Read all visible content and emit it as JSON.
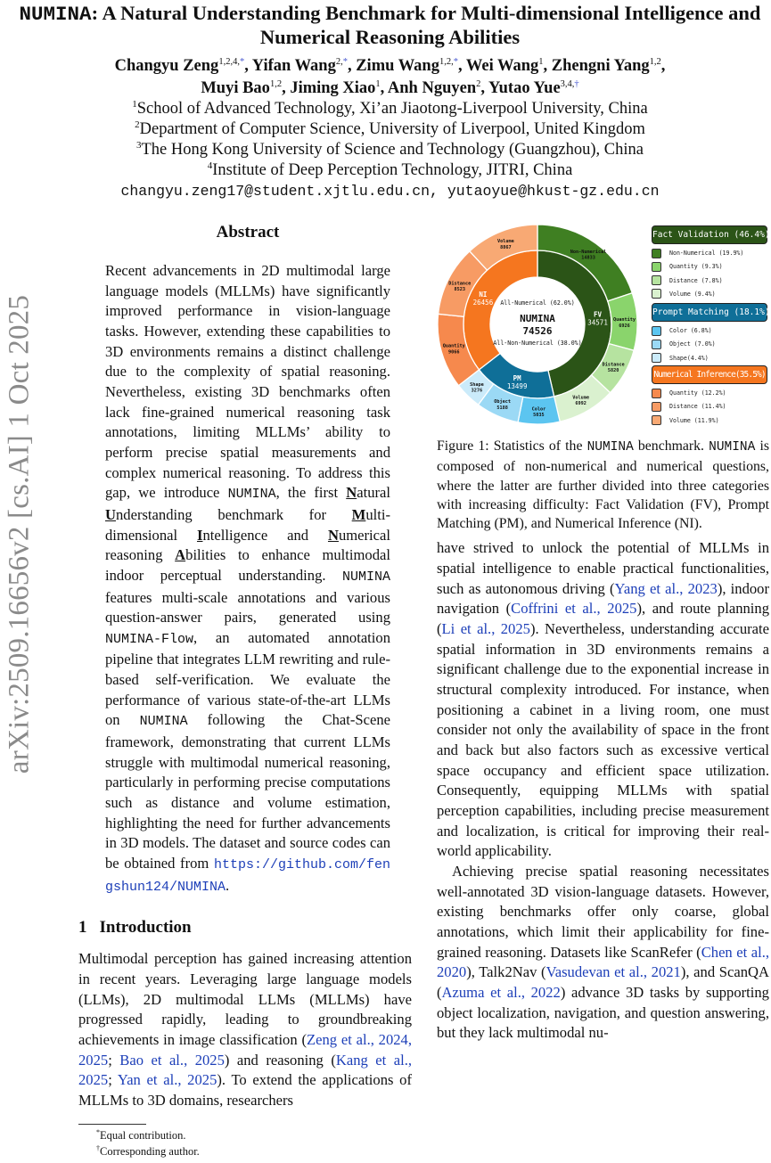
{
  "sidebar_stamp": "arXiv:2509.16656v2  [cs.AI]  1 Oct 2025",
  "title": {
    "name": "NUMINA",
    "rest": ": A Natural Understanding Benchmark for Multi-dimensional Intelligence and Numerical Reasoning Abilities"
  },
  "authors": [
    {
      "name": "Changyu Zeng",
      "sup": "1,2,4,",
      "mark": "*",
      "sep": ", "
    },
    {
      "name": "Yifan Wang",
      "sup": "2,",
      "mark": "*",
      "sep": ", "
    },
    {
      "name": "Zimu Wang",
      "sup": "1,2,",
      "mark": "*",
      "sep": ", "
    },
    {
      "name": "Wei Wang",
      "sup": "1",
      "mark": "",
      "sep": ", "
    },
    {
      "name": "Zhengni Yang",
      "sup": "1,2",
      "mark": "",
      "sep": ", "
    },
    {
      "name": "Muyi Bao",
      "sup": "1,2",
      "mark": "",
      "sep": ", "
    },
    {
      "name": "Jiming Xiao",
      "sup": "1",
      "mark": "",
      "sep": ", "
    },
    {
      "name": "Anh Nguyen",
      "sup": "2",
      "mark": "",
      "sep": ", "
    },
    {
      "name": "Yutao Yue",
      "sup": "3,4,",
      "mark": "†",
      "sep": ""
    }
  ],
  "affiliations": [
    {
      "num": "1",
      "text": "School of Advanced Technology, Xi’an Jiaotong-Liverpool University, China"
    },
    {
      "num": "2",
      "text": "Department of Computer Science, University of Liverpool, United Kingdom"
    },
    {
      "num": "3",
      "text": "The Hong Kong University of Science and Technology (Guangzhou), China"
    },
    {
      "num": "4",
      "text": "Institute of Deep Perception Technology, JITRI, China"
    }
  ],
  "emails": "changyu.zeng17@student.xjtlu.edu.cn, yutaoyue@hkust-gz.edu.cn",
  "abstract": {
    "heading": "Abstract",
    "segments": [
      {
        "s": "t",
        "t": "Recent advancements in 2D multimodal large language models (MLLMs) have significantly improved performance in vision-language tasks. However, extending these capabilities to 3D environments remains a distinct challenge due to the complexity of spatial reasoning. Nevertheless, existing 3D benchmarks often lack fine-grained numerical reasoning task annotations, limiting MLLMs’ ability to perform precise spatial measurements and complex numerical reasoning. To address this gap, we introduce "
      },
      {
        "s": "m",
        "t": "NUMINA"
      },
      {
        "s": "t",
        "t": ", the first "
      },
      {
        "s": "u",
        "t": "N"
      },
      {
        "s": "t",
        "t": "atural "
      },
      {
        "s": "u",
        "t": "U"
      },
      {
        "s": "t",
        "t": "nderstanding benchmark for "
      },
      {
        "s": "u",
        "t": "M"
      },
      {
        "s": "t",
        "t": "ulti-dimensional "
      },
      {
        "s": "u",
        "t": "I"
      },
      {
        "s": "t",
        "t": "ntelligence and "
      },
      {
        "s": "u",
        "t": "N"
      },
      {
        "s": "t",
        "t": "umerical reasoning "
      },
      {
        "s": "u",
        "t": "A"
      },
      {
        "s": "t",
        "t": "bilities to enhance multimodal indoor perceptual understanding. "
      },
      {
        "s": "m",
        "t": "NUMINA"
      },
      {
        "s": "t",
        "t": " features multi-scale annotations and various question-answer pairs, generated using "
      },
      {
        "s": "m",
        "t": "NUMINA-Flow"
      },
      {
        "s": "t",
        "t": ", an automated annotation pipeline that integrates LLM rewriting and rule-based self-verification. We evaluate the performance of various state-of-the-art LLMs on "
      },
      {
        "s": "m",
        "t": "NUMINA"
      },
      {
        "s": "t",
        "t": " following the Chat-Scene framework, demonstrating that current LLMs struggle with multimodal numerical reasoning, particularly in performing precise computations such as distance and volume estimation, highlighting the need for further advancements in 3D models. The dataset and source codes can be obtained from "
      },
      {
        "s": "ml",
        "t": "https://github.com/fengshun124/NUMINA"
      },
      {
        "s": "t",
        "t": "."
      }
    ]
  },
  "introduction": {
    "number": "1",
    "heading": "Introduction",
    "segments": [
      {
        "s": "t",
        "t": "Multimodal perception has gained increasing attention in recent years. Leveraging large language models (LLMs), 2D multimodal LLMs (MLLMs) have progressed rapidly, leading to groundbreaking achievements in image classification ("
      },
      {
        "s": "l",
        "t": "Zeng et al., 2024, 2025"
      },
      {
        "s": "t",
        "t": "; "
      },
      {
        "s": "l",
        "t": "Bao et al., 2025"
      },
      {
        "s": "t",
        "t": ") and reasoning ("
      },
      {
        "s": "l",
        "t": "Kang et al., 2025"
      },
      {
        "s": "t",
        "t": "; "
      },
      {
        "s": "l",
        "t": "Yan et al., 2025"
      },
      {
        "s": "t",
        "t": "). To extend the applications of MLLMs to 3D domains, researchers"
      }
    ]
  },
  "right_column": {
    "para1": [
      {
        "s": "t",
        "t": "have strived to unlock the potential of MLLMs in spatial intelligence to enable practical functionalities, such as autonomous driving ("
      },
      {
        "s": "l",
        "t": "Yang et al., 2023"
      },
      {
        "s": "t",
        "t": "), indoor navigation ("
      },
      {
        "s": "l",
        "t": "Coffrini et al., 2025"
      },
      {
        "s": "t",
        "t": "), and route planning ("
      },
      {
        "s": "l",
        "t": "Li et al., 2025"
      },
      {
        "s": "t",
        "t": "). Nevertheless, understanding accurate spatial information in 3D environments remains a significant challenge due to the exponential increase in structural complexity introduced. For instance, when positioning a cabinet in a living room, one must consider not only the availability of space in the front and back but also factors such as excessive vertical space occupancy and efficient space utilization. Consequently, equipping MLLMs with spatial perception capabilities, including precise measurement and localization, is critical for improving their real-world applicability."
      }
    ],
    "para2": [
      {
        "s": "t",
        "t": "Achieving precise spatial reasoning necessitates well-annotated 3D vision-language datasets. However, existing benchmarks offer only coarse, global annotations, which limit their applicability for fine-grained reasoning. Datasets like ScanRefer ("
      },
      {
        "s": "l",
        "t": "Chen et al., 2020"
      },
      {
        "s": "t",
        "t": "), Talk2Nav ("
      },
      {
        "s": "l",
        "t": "Vasudevan et al., 2021"
      },
      {
        "s": "t",
        "t": "), and ScanQA ("
      },
      {
        "s": "l",
        "t": "Azuma et al., 2022"
      },
      {
        "s": "t",
        "t": ") advance 3D tasks by supporting object localization, navigation, and question answering, but they lack multimodal nu-"
      }
    ]
  },
  "figure": {
    "caption": [
      {
        "s": "t",
        "t": "Figure 1: Statistics of the "
      },
      {
        "s": "m",
        "t": "NUMINA"
      },
      {
        "s": "t",
        "t": " benchmark. "
      },
      {
        "s": "m",
        "t": "NUMINA"
      },
      {
        "s": "t",
        "t": " is composed of non-numerical and numerical questions, where the latter are further divided into three categories with increasing difficulty: Fact Validation (FV), Prompt Matching (PM), and Numerical Inference (NI)."
      }
    ]
  },
  "chart_data": {
    "type": "pie",
    "variant": "nested-donut",
    "center": {
      "top": "All-Numerical (62.0%)",
      "title": "NUMINA",
      "total": "74526",
      "bottom": "All-Non-Numerical (38.0%)"
    },
    "total": 74526,
    "inner": [
      {
        "label": "FV",
        "value": 34571,
        "color": "#2b5417"
      },
      {
        "label": "PM",
        "value": 13499,
        "color": "#0f6f98"
      },
      {
        "label": "NI",
        "value": 26456,
        "color": "#f5761f"
      }
    ],
    "outer": [
      {
        "label": "Non-Numerical",
        "value": 14833,
        "group": "FV",
        "color": "#3f7f22"
      },
      {
        "label": "Quantity",
        "value": 6926,
        "group": "FV",
        "color": "#8ad46c"
      },
      {
        "label": "Distance",
        "value": 5820,
        "group": "FV",
        "color": "#b6e3a0"
      },
      {
        "label": "Volume",
        "value": 6992,
        "group": "FV",
        "color": "#daf1cf"
      },
      {
        "label": "Color",
        "value": 5035,
        "group": "PM",
        "color": "#5cc5f0"
      },
      {
        "label": "Object",
        "value": 5188,
        "group": "PM",
        "color": "#9bd9f5"
      },
      {
        "label": "Shape",
        "value": 3276,
        "group": "PM",
        "color": "#cbebfa"
      },
      {
        "label": "Quantity",
        "value": 9066,
        "group": "NI",
        "color": "#f6894d"
      },
      {
        "label": "Distance",
        "value": 8523,
        "group": "NI",
        "color": "#f79b64"
      },
      {
        "label": "Volume",
        "value": 8867,
        "group": "NI",
        "color": "#f8a974"
      }
    ],
    "legend": {
      "placement": "right",
      "groups": [
        {
          "title": "Fact Validation (46.4%)",
          "color": "#2b5417",
          "items": [
            {
              "label": "Non-Numerical (19.9%)",
              "color": "#3f7f22"
            },
            {
              "label": "Quantity (9.3%)",
              "color": "#8ad46c"
            },
            {
              "label": "Distance (7.8%)",
              "color": "#b6e3a0"
            },
            {
              "label": "Volume (9.4%)",
              "color": "#daf1cf"
            }
          ]
        },
        {
          "title": "Prompt Matching (18.1%)",
          "color": "#0f6f98",
          "items": [
            {
              "label": "Color (6.8%)",
              "color": "#5cc5f0"
            },
            {
              "label": "Object (7.0%)",
              "color": "#9bd9f5"
            },
            {
              "label": "Shape(4.4%)",
              "color": "#cbebfa"
            }
          ]
        },
        {
          "title": "Numerical Inference(35.5%)",
          "color": "#f5761f",
          "items": [
            {
              "label": "Quantity (12.2%)",
              "color": "#f6894d"
            },
            {
              "label": "Distance (11.4%)",
              "color": "#f79b64"
            },
            {
              "label": "Volume (11.9%)",
              "color": "#f8a974"
            }
          ]
        }
      ]
    }
  },
  "footnotes": [
    {
      "mark": "*",
      "text": "Equal contribution."
    },
    {
      "mark": "†",
      "text": "Corresponding author."
    }
  ]
}
